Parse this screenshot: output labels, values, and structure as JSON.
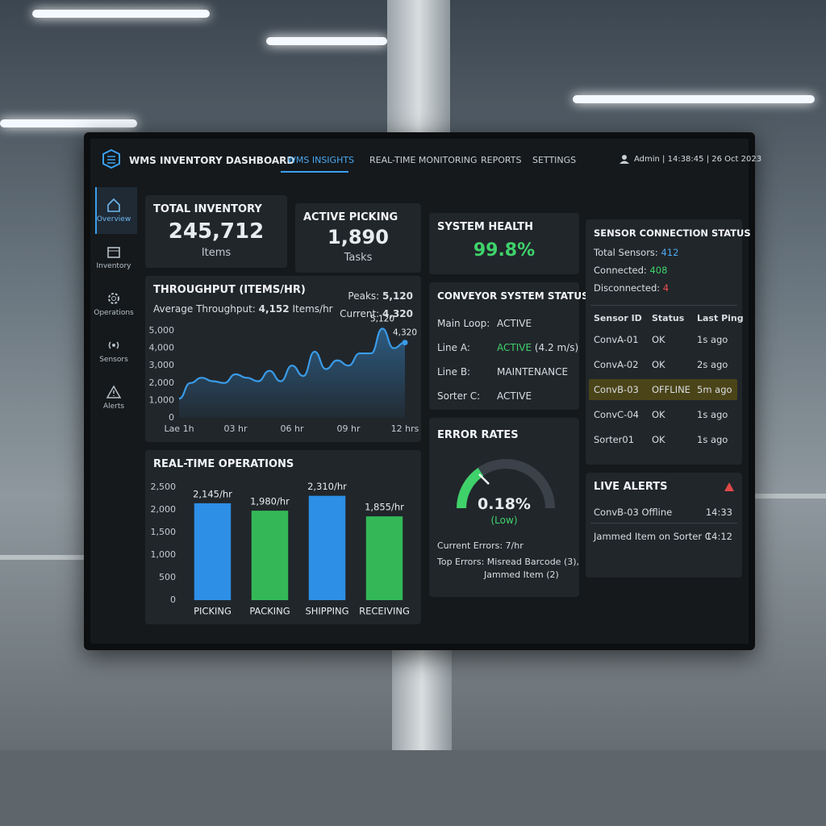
{
  "header": {
    "title": "WMS INVENTORY DASHBOARD",
    "nav": [
      "WMS INSIGHTS",
      "REAL-TIME MONITORING",
      "REPORTS",
      "SETTINGS"
    ],
    "user": "Admin | 14:38:45 | 26 Oct 2023"
  },
  "sidebar": [
    "Overview",
    "Inventory",
    "Operations",
    "Sensors",
    "Alerts"
  ],
  "kpis": [
    {
      "title": "TOTAL INVENTORY",
      "value": "245,712",
      "unit": "Items"
    },
    {
      "title": "ACTIVE PICKING",
      "value": "1,890",
      "unit": "Tasks"
    },
    {
      "title": "SYSTEM HEALTH",
      "value": "99.8%"
    }
  ],
  "throughput": {
    "type": "line",
    "title": "THROUGHPUT (ITEMS/HR)",
    "average_label": "Average Throughput:",
    "average": "4,152",
    "average_unit": "Items/hr",
    "peak_label": "Peaks:",
    "peak": "5,120",
    "current_label": "Current:",
    "current": "4,320",
    "x": [
      0,
      0.6,
      1.2,
      1.8,
      2.4,
      3.0,
      3.6,
      4.2,
      4.8,
      5.4,
      6.0,
      6.6,
      7.2,
      7.8,
      8.4,
      9.0,
      9.6,
      10.2,
      10.8,
      11.4,
      12
    ],
    "values": [
      1100,
      2000,
      2300,
      2100,
      2000,
      2500,
      2300,
      2100,
      2700,
      2100,
      3000,
      2400,
      3800,
      2800,
      3300,
      3000,
      3700,
      3700,
      5120,
      4000,
      4320
    ],
    "color": "#3a9be8",
    "xlim": [
      0,
      12
    ],
    "xticks": [
      {
        "value": 0,
        "label": "Lae 1h"
      },
      {
        "value": 3,
        "label": "03 hr"
      },
      {
        "value": 6,
        "label": "06 hr"
      },
      {
        "value": 9,
        "label": "09 hr"
      },
      {
        "value": 12,
        "label": "12 hrs"
      }
    ],
    "ylim": [
      0,
      5000
    ],
    "yticks": [
      0,
      {
        "value": 1000,
        "label": "1,000"
      },
      {
        "value": 2000,
        "label": "2,000"
      },
      {
        "value": 3000,
        "label": "3,000"
      },
      {
        "value": 4000,
        "label": "4,000"
      },
      {
        "value": 5000,
        "label": "5,000"
      }
    ],
    "annotations": [
      {
        "x": 10.8,
        "value": 5120,
        "label": "5,120"
      },
      {
        "x": 12,
        "value": 4320,
        "label": "4,320"
      }
    ]
  },
  "operations": {
    "type": "bar",
    "title": "REAL-TIME OPERATIONS",
    "categories": [
      "PICKING",
      "PACKING",
      "SHIPPING",
      "RECEIVING"
    ],
    "values": [
      2145,
      1980,
      2310,
      1855
    ],
    "value_labels": [
      "2,145/hr",
      "1,980/hr",
      "2,310/hr",
      "1,855/hr"
    ],
    "colors": [
      "#2d8fe6",
      "#34b857",
      "#2d8fe6",
      "#34b857"
    ],
    "ylim": [
      0,
      2500
    ],
    "yticks": [
      0,
      500,
      {
        "value": 1000,
        "label": "1,000"
      },
      {
        "value": 1500,
        "label": "1,500"
      },
      {
        "value": 2000,
        "label": "2,000"
      },
      {
        "value": 2500,
        "label": "2,500"
      }
    ]
  },
  "conveyor": {
    "title": "CONVEYOR SYSTEM STATUS",
    "rows": [
      {
        "label": "Main Loop:",
        "status": "ACTIVE"
      },
      {
        "label": "Line A:",
        "status": "ACTIVE",
        "detail": "(4.2 m/s)"
      },
      {
        "label": "Line B:",
        "status": "MAINTENANCE"
      },
      {
        "label": "Sorter C:",
        "status": "ACTIVE"
      }
    ]
  },
  "errors": {
    "title": "ERROR RATES",
    "value": "0.18%",
    "level": "(Low)",
    "current": "Current Errors: 7/hr",
    "top_errors": [
      "Top Errors: Misread Barcode (3),",
      "Jammed Item (2)"
    ]
  },
  "sensors": {
    "title": "SENSOR CONNECTION STATUS",
    "summary": [
      {
        "label": "Total Sensors:",
        "value": "412"
      },
      {
        "label": "Connected:",
        "value": "408"
      },
      {
        "label": "Disconnected:",
        "value": "4"
      }
    ],
    "table": {
      "columns": [
        "Sensor ID",
        "Status",
        "Last Ping"
      ],
      "rows": [
        [
          "ConvA-01",
          "OK",
          "1s ago"
        ],
        [
          "ConvA-02",
          "OK",
          "2s ago"
        ],
        [
          "ConvB-03",
          "OFFLINE",
          "5m ago"
        ],
        [
          "ConvC-04",
          "OK",
          "1s ago"
        ],
        [
          "Sorter01",
          "OK",
          "1s ago"
        ]
      ]
    }
  },
  "alerts": {
    "title": "LIVE ALERTS",
    "items": [
      {
        "text": "ConvB-03 Offline",
        "time": "14:33"
      },
      {
        "text": "Jammed Item on Sorter C",
        "time": "14:12"
      }
    ]
  }
}
